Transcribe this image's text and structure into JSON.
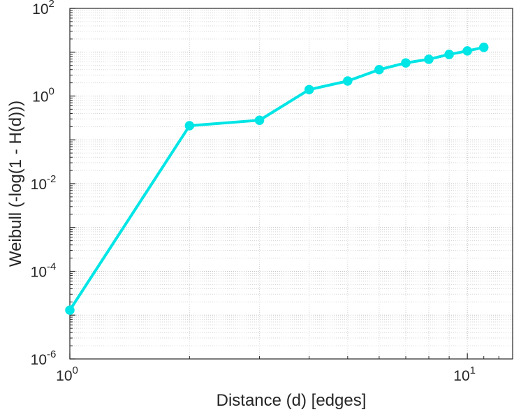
{
  "chart_data": {
    "type": "line",
    "title": "",
    "xlabel": "Distance (d) [edges]",
    "ylabel": "Weibull (-log(1 - H(d)))",
    "x_scale": "log",
    "y_scale": "log",
    "xlim": [
      1,
      13
    ],
    "ylim": [
      1e-06,
      100
    ],
    "x": [
      1,
      2,
      3,
      4,
      5,
      6,
      7,
      8,
      9,
      10,
      11
    ],
    "y": [
      1.3e-05,
      0.21,
      0.28,
      1.4,
      2.2,
      4.0,
      5.7,
      6.9,
      8.9,
      10.7,
      12.9
    ],
    "x_tick_exponents": [
      0,
      1
    ],
    "y_tick_exponents": [
      -6,
      -4,
      -2,
      0,
      2
    ],
    "grid": true,
    "legend": null,
    "colors": {
      "line": "#00e5e5",
      "marker_fill": "#00e5e5",
      "axis": "#262626",
      "grid_major": "#bdbdbd",
      "grid_minor": "#d6d6d6",
      "background": "#ffffff"
    }
  }
}
